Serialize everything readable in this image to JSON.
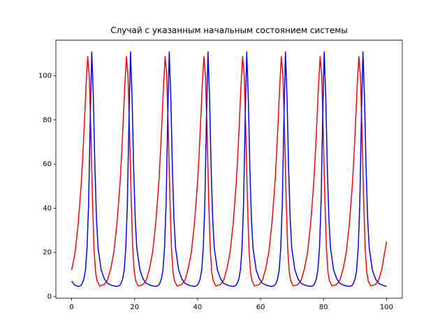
{
  "chart_data": {
    "type": "line",
    "title": "Случай с указанным начальным состоянием системы",
    "xlim": [
      -5,
      105
    ],
    "ylim": [
      -0.7,
      116.1
    ],
    "xticks": [
      0,
      20,
      40,
      60,
      80,
      100
    ],
    "yticks": [
      0,
      20,
      40,
      60,
      80,
      100
    ],
    "grid": false,
    "series": [
      {
        "color": "#ff0000",
        "x": [
          0,
          1.1,
          2.1,
          3.1,
          3.6,
          4.1,
          4.6,
          5.1,
          5.6,
          6.1,
          6.6,
          7.1,
          7.6,
          8.1,
          8.9,
          10.4,
          11.4,
          12.4,
          13.4,
          14.4,
          15.4,
          15.9,
          16.4,
          16.9,
          17.4,
          17.9,
          18.4,
          18.9,
          19.4,
          19.9,
          20.4,
          21.2,
          22.7,
          23.7,
          24.7,
          25.7,
          26.7,
          27.7,
          28.2,
          28.7,
          29.2,
          29.7,
          30.2,
          30.7,
          31.2,
          31.7,
          32.2,
          32.7,
          33.5,
          35.0,
          36.0,
          37.0,
          38,
          39,
          40,
          40.5,
          41,
          41.5,
          42,
          42.5,
          43,
          43.5,
          44,
          44.5,
          45,
          45.8,
          47.3,
          48.3,
          49.3,
          50.3,
          51.3,
          52.3,
          52.8,
          53.3,
          53.8,
          54.3,
          54.8,
          55.3,
          55.8,
          56.3,
          56.8,
          57.3,
          58.1,
          59.6,
          60.6,
          61.6,
          62.6,
          63.6,
          64.6,
          65.1,
          65.6,
          66.1,
          66.6,
          67.1,
          67.6,
          68.1,
          68.6,
          69.1,
          69.6,
          70.4,
          71.9,
          72.9,
          73.9,
          74.9,
          75.9,
          76.9,
          77.4,
          77.9,
          78.4,
          78.9,
          79.4,
          79.9,
          80.4,
          80.9,
          81.4,
          81.9,
          82.7,
          84.2,
          85.2,
          86.2,
          87.2,
          88.2,
          89.2,
          89.7,
          90.2,
          90.7,
          91.2,
          91.7,
          92.2,
          92.7,
          93.2,
          93.7,
          94.2,
          95.0,
          96.5,
          97.5,
          98.5,
          100
        ],
        "values": [
          12,
          20,
          33,
          52,
          65,
          80,
          96,
          108.7,
          100,
          75,
          45,
          22,
          11,
          7,
          4.8,
          5.5,
          7.5,
          12.5,
          20,
          33,
          52,
          65,
          80,
          96,
          108.7,
          100,
          75,
          45,
          22,
          11,
          7,
          4.8,
          5.5,
          7.5,
          12.5,
          20,
          33,
          52,
          65,
          80,
          96,
          108.7,
          100,
          75,
          45,
          22,
          11,
          7,
          4.8,
          5.5,
          7.5,
          12.5,
          20,
          33,
          52,
          65,
          80,
          96,
          108.7,
          100,
          75,
          45,
          22,
          11,
          7,
          4.8,
          5.5,
          7.5,
          12.5,
          20,
          33,
          52,
          65,
          80,
          96,
          108.7,
          100,
          75,
          45,
          22,
          11,
          7,
          4.8,
          5.5,
          7.5,
          12.5,
          20,
          33,
          52,
          65,
          80,
          96,
          108.7,
          100,
          75,
          45,
          22,
          11,
          7,
          4.8,
          5.5,
          7.5,
          12.5,
          20,
          33,
          52,
          65,
          80,
          96,
          108.7,
          100,
          75,
          45,
          22,
          11,
          7,
          4.8,
          5.5,
          7.5,
          12.5,
          20,
          33,
          52,
          65,
          80,
          96,
          108.7,
          100,
          75,
          45,
          22,
          11,
          7,
          4.8,
          5.5,
          7.5,
          12.5,
          25
        ]
      },
      {
        "color": "#0000ff",
        "x": [
          0,
          1,
          2.1,
          2.9,
          3.4,
          3.9,
          4.4,
          4.9,
          5.4,
          5.9,
          6.4,
          6.9,
          7.4,
          7.9,
          8.4,
          9.4,
          10.4,
          11.4,
          12.9,
          14.4,
          15.2,
          15.7,
          16.2,
          16.7,
          17.2,
          17.7,
          18.2,
          18.7,
          19.2,
          19.7,
          20.2,
          20.7,
          21.7,
          22.7,
          23.7,
          25.2,
          26.7,
          27.5,
          28,
          28.5,
          29,
          29.5,
          30,
          30.5,
          31,
          31.5,
          32,
          32.5,
          33,
          34,
          35,
          36,
          37.5,
          39,
          39.8,
          40.3,
          40.8,
          41.3,
          41.8,
          42.3,
          42.8,
          43.3,
          43.8,
          44.3,
          44.8,
          45.3,
          46.3,
          47.3,
          48.3,
          49.8,
          51.3,
          52.1,
          52.6,
          53.1,
          53.6,
          54.1,
          54.6,
          55.1,
          55.6,
          56.1,
          56.6,
          57.1,
          57.6,
          58.6,
          59.6,
          60.6,
          62.1,
          63.6,
          64.4,
          64.9,
          65.4,
          65.9,
          66.4,
          66.9,
          67.4,
          67.9,
          68.4,
          68.9,
          69.4,
          69.9,
          70.9,
          71.9,
          72.9,
          74.4,
          75.9,
          76.7,
          77.2,
          77.7,
          78.2,
          78.7,
          79.2,
          79.7,
          80.2,
          80.7,
          81.2,
          81.7,
          82.2,
          83.2,
          84.2,
          85.2,
          86.7,
          88.2,
          89,
          89.5,
          90,
          90.5,
          91,
          91.5,
          92,
          92.5,
          93,
          93.5,
          94,
          94.5,
          95.5,
          96.5,
          97.5,
          99,
          100
        ],
        "values": [
          7,
          5.2,
          4.6,
          5,
          6,
          8,
          12,
          22,
          42,
          80,
          110.8,
          90,
          58,
          35,
          22,
          12,
          8,
          6,
          5,
          4.6,
          5,
          6,
          8,
          12,
          22,
          42,
          80,
          110.8,
          90,
          58,
          35,
          22,
          12,
          8,
          6,
          5,
          4.6,
          5,
          6,
          8,
          12,
          22,
          42,
          80,
          110.8,
          90,
          58,
          35,
          22,
          12,
          8,
          6,
          5,
          4.6,
          5,
          6,
          8,
          12,
          22,
          42,
          80,
          110.8,
          90,
          58,
          35,
          22,
          12,
          8,
          6,
          5,
          4.6,
          5,
          6,
          8,
          12,
          22,
          42,
          80,
          110.8,
          90,
          58,
          35,
          22,
          12,
          8,
          6,
          5,
          4.6,
          5,
          6,
          8,
          12,
          22,
          42,
          80,
          110.8,
          90,
          58,
          35,
          22,
          12,
          8,
          6,
          5,
          4.6,
          5,
          6,
          8,
          12,
          22,
          42,
          80,
          110.8,
          90,
          58,
          35,
          22,
          12,
          8,
          6,
          5,
          4.6,
          5,
          6,
          8,
          12,
          22,
          42,
          80,
          110.8,
          90,
          58,
          35,
          22,
          12,
          8,
          6,
          5,
          4.6
        ]
      }
    ]
  }
}
